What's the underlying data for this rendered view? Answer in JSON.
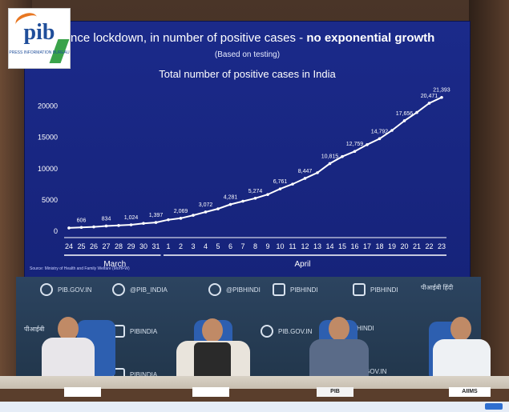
{
  "logo": {
    "name": "pib",
    "subtitle": "PRESS INFORMATION BUREAU"
  },
  "screen": {
    "headline_prefix": "Since lockdown, in number of positive cases - ",
    "headline_bold": "no exponential growth",
    "subtitle": "(Based on testing)",
    "chart_title": "Total number of positive cases in India",
    "source": "Source: Ministry of Health and Family Welfare (MoHFW)"
  },
  "chart_data": {
    "type": "line",
    "title": "Total number of positive cases in India",
    "x": [
      "24",
      "25",
      "26",
      "27",
      "28",
      "29",
      "30",
      "31",
      "1",
      "2",
      "3",
      "4",
      "5",
      "6",
      "7",
      "8",
      "9",
      "10",
      "11",
      "12",
      "13",
      "14",
      "15",
      "16",
      "17",
      "18",
      "19",
      "20",
      "21",
      "22",
      "23"
    ],
    "values": [
      519,
      606,
      694,
      834,
      918,
      1024,
      1251,
      1397,
      1834,
      2069,
      2547,
      3072,
      3577,
      4281,
      4789,
      5274,
      5865,
      6761,
      7529,
      8447,
      9352,
      10815,
      11933,
      12759,
      13835,
      14792,
      16116,
      17656,
      18985,
      20471,
      21393
    ],
    "point_labels": {
      "25": "606",
      "27": "834",
      "29": "1,024",
      "31": "1,397",
      "2": "2,069",
      "4": "3,072",
      "6": "4,281",
      "8": "5,274",
      "10": "6,761",
      "12": "8,447",
      "14": "10,815",
      "16": "12,759",
      "18": "14,792",
      "20": "17,656",
      "22": "20,471",
      "23": "21,393"
    },
    "month_labels": [
      "March",
      "April"
    ],
    "yticks": [
      0,
      5000,
      10000,
      15000,
      20000
    ],
    "ylim": [
      0,
      22000
    ],
    "line_color": "#ffffff",
    "background": "#1b2a8a"
  },
  "banners": {
    "website": "PIB.GOV.IN",
    "twitter1": "@PIB_INDIA",
    "twitter2": "@PIBHINDI",
    "facebook": "PIBHINDI",
    "instagram": "PIBHINDI",
    "hindi": "पीआईबी हिंदी",
    "youtube": "PIBINDIA",
    "website2": "PIB.GOV.IN",
    "fb2": "PIBINDIA",
    "hindi2": "पीआईबी",
    "website3": "PIB.GOV.IN",
    "hindi3": "HINDI"
  },
  "nameplates": [
    "",
    "",
    "PIB",
    "AIIMS"
  ]
}
